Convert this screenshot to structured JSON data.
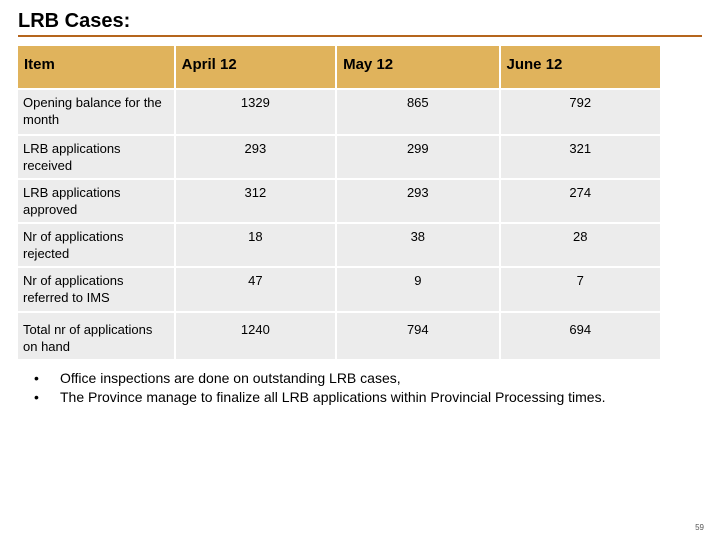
{
  "slide": {
    "title": "LRB Cases:",
    "page_number": "59"
  },
  "table": {
    "headers": [
      "Item",
      "April 12",
      "May 12",
      "June 12"
    ],
    "rows": [
      {
        "label": "Opening balance for the month",
        "values": [
          "1329",
          "865",
          "792"
        ]
      },
      {
        "label": "LRB applications received",
        "values": [
          "293",
          "299",
          "321"
        ]
      },
      {
        "label": "LRB applications approved",
        "values": [
          "312",
          "293",
          "274"
        ]
      },
      {
        "label": "Nr of applications rejected",
        "values": [
          "18",
          "38",
          "28"
        ]
      },
      {
        "label": "Nr of applications referred to IMS",
        "values": [
          "47",
          "9",
          "7"
        ]
      },
      {
        "label": "Total nr of applications on hand",
        "values": [
          "1240",
          "794",
          "694"
        ]
      }
    ]
  },
  "notes": [
    "Office inspections are done on outstanding LRB cases,",
    "The Province manage to finalize all LRB applications within Provincial Processing times."
  ],
  "colors": {
    "header_fill": "#e0b35c",
    "row_fill": "#ececec",
    "title_rule": "#b5651d"
  }
}
